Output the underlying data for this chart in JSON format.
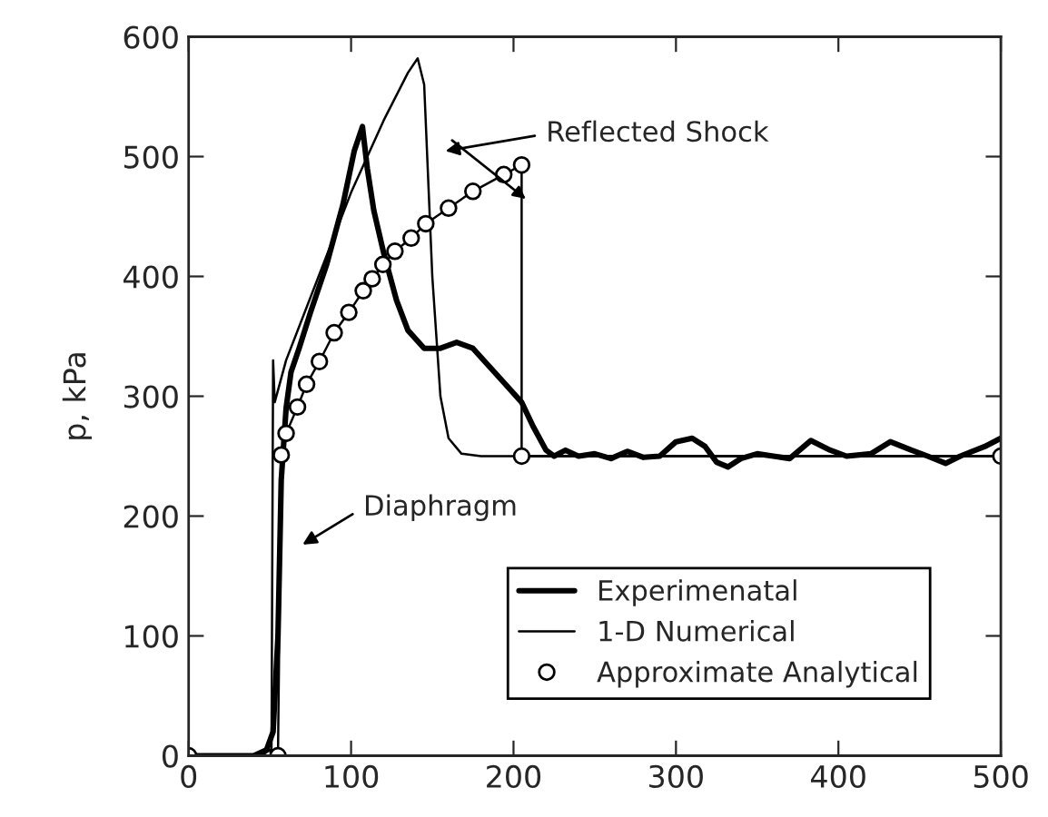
{
  "chart_data": {
    "type": "line",
    "ylabel": "p, kPa",
    "xlim": [
      0,
      500
    ],
    "ylim": [
      0,
      600
    ],
    "xticks": [
      0,
      100,
      200,
      300,
      400,
      500
    ],
    "yticks": [
      0,
      100,
      200,
      300,
      400,
      500,
      600
    ],
    "grid": false,
    "legend": "bottom right",
    "series": [
      {
        "name": "Experimenatal",
        "color": "#000000",
        "marker": "none",
        "line_style": "solid",
        "x": [
          0,
          40,
          48,
          52,
          55,
          57,
          60,
          63,
          68,
          75,
          85,
          95,
          102,
          107,
          110,
          114,
          120,
          128,
          135,
          145,
          155,
          165,
          175,
          185,
          195,
          205,
          212,
          220,
          225,
          232,
          240,
          250,
          260,
          270,
          280,
          290,
          300,
          310,
          318,
          325,
          332,
          340,
          350,
          360,
          370,
          383,
          395,
          405,
          420,
          432,
          445,
          455,
          466,
          475,
          490,
          500
        ],
        "values": [
          0,
          0,
          5,
          20,
          100,
          230,
          290,
          320,
          340,
          370,
          410,
          460,
          505,
          525,
          490,
          455,
          420,
          380,
          355,
          340,
          340,
          345,
          340,
          325,
          310,
          295,
          275,
          255,
          250,
          255,
          250,
          252,
          248,
          254,
          249,
          250,
          262,
          265,
          258,
          245,
          241,
          248,
          252,
          250,
          248,
          263,
          255,
          250,
          252,
          262,
          255,
          250,
          244,
          250,
          258,
          265
        ]
      },
      {
        "name": "1-D Numerical",
        "color": "#000000",
        "marker": "none",
        "line_style": "solid",
        "x": [
          0,
          45,
          50,
          51,
          52,
          53,
          60,
          80,
          100,
          110,
          120,
          135,
          141,
          145,
          150,
          155,
          160,
          168,
          180,
          500
        ],
        "values": [
          0,
          0,
          5,
          0,
          330,
          295,
          330,
          400,
          470,
          500,
          530,
          570,
          582,
          560,
          400,
          300,
          265,
          252,
          250,
          250
        ]
      },
      {
        "name": "Approximate Analytical",
        "color": "#000000",
        "marker": "circle",
        "line_style": "solid",
        "x": [
          0,
          55,
          57,
          60,
          67,
          72.6,
          80.5,
          89.6,
          98.6,
          107.5,
          113,
          119.6,
          127,
          137,
          146,
          160,
          175,
          194,
          205,
          205,
          500
        ],
        "values": [
          0,
          0,
          251,
          269,
          291,
          310,
          329,
          353,
          370,
          388,
          398,
          410,
          421,
          432,
          444,
          457,
          471,
          485,
          493,
          250,
          250
        ]
      }
    ],
    "annotations": [
      "Reflected Shock",
      "Diaphragm"
    ]
  }
}
